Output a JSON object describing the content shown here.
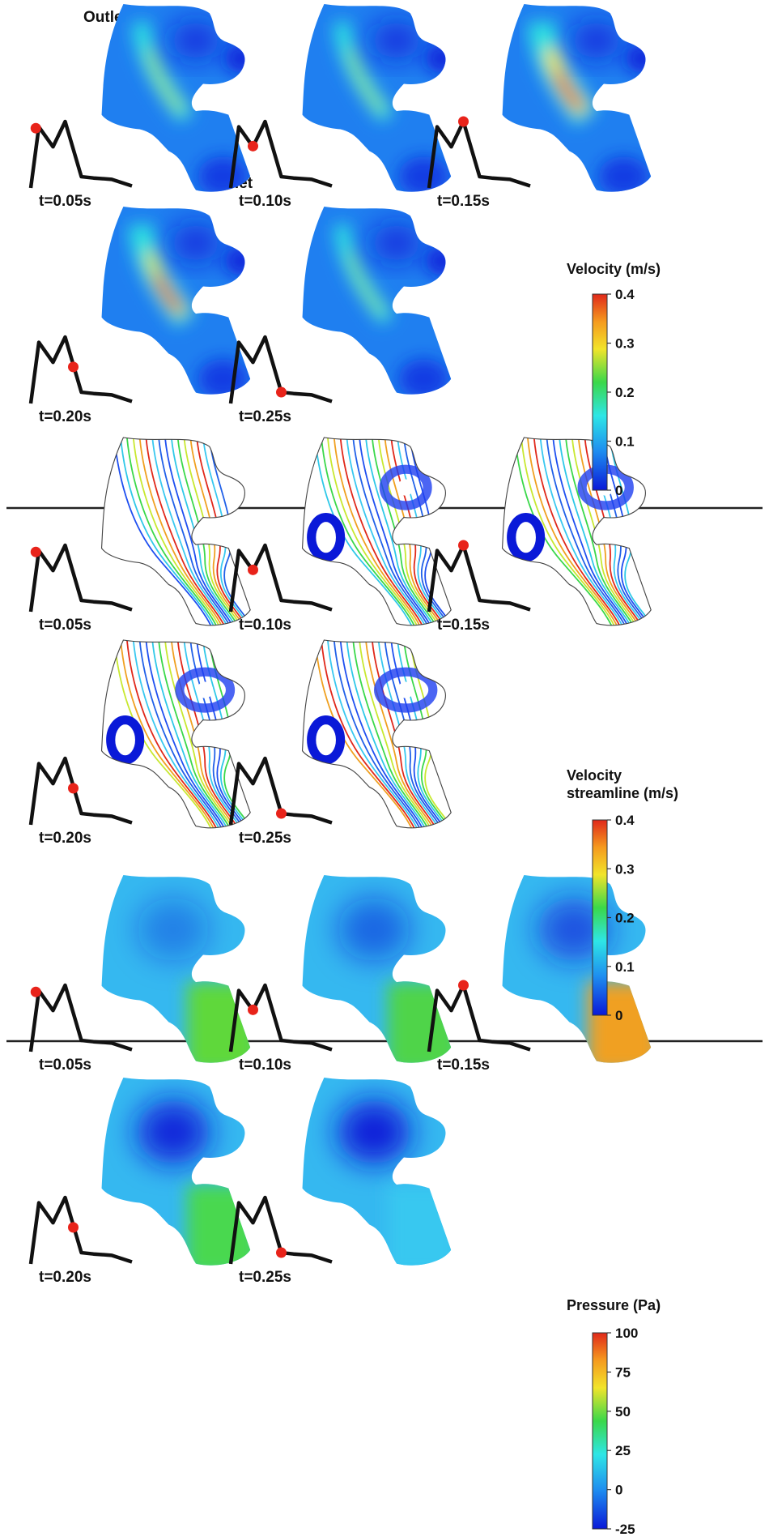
{
  "figure_labels": {
    "outlet": "Outlet",
    "inlet": "Inlet"
  },
  "time_labels": [
    "t=0.05s",
    "t=0.10s",
    "t=0.15s",
    "t=0.20s",
    "t=0.25s"
  ],
  "waveform_marker_positions": [
    0.05,
    0.1,
    0.15,
    0.2,
    0.25
  ],
  "sections": [
    {
      "id": "velocity",
      "kind": "contour",
      "colorbar": {
        "title_lines": [
          "Velocity (m/s)"
        ],
        "ticks": [
          "0.4",
          "0.3",
          "0.2",
          "0.1",
          "0"
        ],
        "min": 0,
        "max": 0.4
      }
    },
    {
      "id": "streamline",
      "kind": "streamline",
      "colorbar": {
        "title_lines": [
          "Velocity",
          "streamline (m/s)"
        ],
        "ticks": [
          "0.4",
          "0.3",
          "0.2",
          "0.1",
          "0"
        ],
        "min": 0,
        "max": 0.4
      }
    },
    {
      "id": "pressure",
      "kind": "pressure",
      "colorbar": {
        "title_lines": [
          "Pressure (Pa)"
        ],
        "ticks": [
          "100",
          "75",
          "50",
          "25",
          "0",
          "-25"
        ],
        "min": -25,
        "max": 100
      }
    }
  ],
  "colors": {
    "waveform": "#111111",
    "marker": "#e8231a",
    "separator": "#222222",
    "colormap": [
      "#0a19d8",
      "#1e8ef0",
      "#2ee6e6",
      "#3ad84a",
      "#f2e42a",
      "#f59a1e",
      "#e0281a"
    ]
  }
}
